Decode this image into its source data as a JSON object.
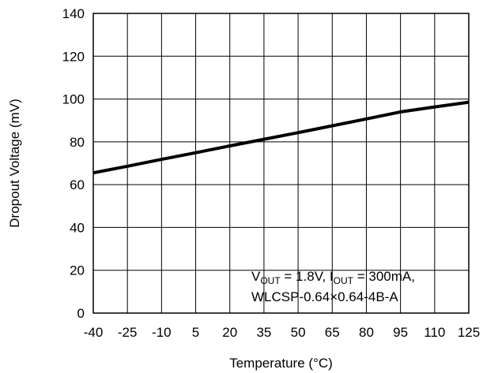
{
  "chart_data": {
    "type": "line",
    "xlabel": "Temperature (°C)",
    "ylabel": "Dropout Voltage (mV)",
    "xlim": [
      -40,
      125
    ],
    "ylim": [
      0,
      140
    ],
    "x_ticks": [
      -40,
      -25,
      -10,
      5,
      20,
      35,
      50,
      65,
      80,
      95,
      110,
      125
    ],
    "y_ticks": [
      0,
      20,
      40,
      60,
      80,
      100,
      120,
      140
    ],
    "grid": true,
    "series": [
      {
        "color": "#000000",
        "x": [
          -40,
          -25,
          -10,
          5,
          20,
          35,
          50,
          65,
          80,
          95,
          110,
          125
        ],
        "y": [
          65.5,
          68.6,
          71.8,
          74.9,
          78.1,
          81.2,
          84.3,
          87.5,
          90.7,
          94.0,
          96.3,
          98.5
        ]
      }
    ],
    "annotation": {
      "line1": [
        {
          "text": "V"
        },
        {
          "text": "OUT",
          "sub": true
        },
        {
          "text": " = 1.8V, I"
        },
        {
          "text": "OUT",
          "sub": true
        },
        {
          "text": " = 300mA,"
        }
      ],
      "line2": "WLCSP-0.64×0.64-4B-A"
    }
  }
}
